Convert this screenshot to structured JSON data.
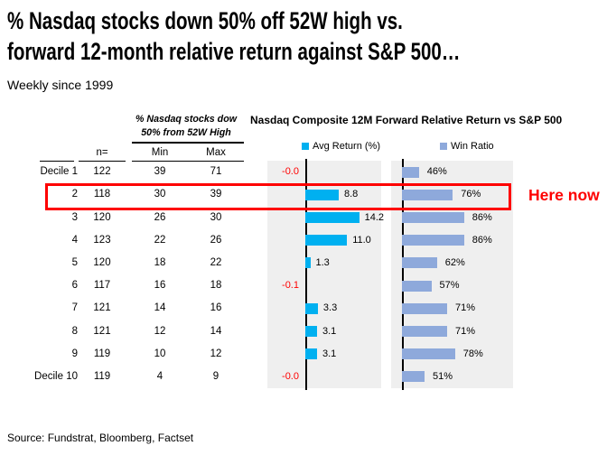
{
  "header": {
    "title_line1": "% Nasdaq stocks down 50% off 52W high vs.",
    "title_line2": "forward 12-month relative return against S&P 500…",
    "subtitle": "Weekly since 1999"
  },
  "table": {
    "span_header_line1": "% Nasdaq stocks dow",
    "span_header_line2": "50% from 52W High",
    "col_n": "n=",
    "col_min": "Min",
    "col_max": "Max",
    "rows": [
      {
        "label": "Decile 1",
        "n": "122",
        "min": "39",
        "max": "71"
      },
      {
        "label": "2",
        "n": "118",
        "min": "30",
        "max": "39"
      },
      {
        "label": "3",
        "n": "120",
        "min": "26",
        "max": "30"
      },
      {
        "label": "4",
        "n": "123",
        "min": "22",
        "max": "26"
      },
      {
        "label": "5",
        "n": "120",
        "min": "18",
        "max": "22"
      },
      {
        "label": "6",
        "n": "117",
        "min": "16",
        "max": "18"
      },
      {
        "label": "7",
        "n": "121",
        "min": "14",
        "max": "16"
      },
      {
        "label": "8",
        "n": "121",
        "min": "12",
        "max": "14"
      },
      {
        "label": "9",
        "n": "119",
        "min": "10",
        "max": "12"
      },
      {
        "label": "Decile 10",
        "n": "119",
        "min": "4",
        "max": "9"
      }
    ]
  },
  "chart": {
    "title": "Nasdaq Composite 12M Forward Relative Return vs S&P 500",
    "legend": [
      {
        "label": "Avg Return (%)",
        "color": "#00b0f0"
      },
      {
        "label": "Win Ratio",
        "color": "#8ea9db"
      }
    ]
  },
  "chart_data": [
    {
      "type": "bar",
      "orientation": "horizontal",
      "name": "Avg Return (%)",
      "categories": [
        "Decile 1",
        "2",
        "3",
        "4",
        "5",
        "6",
        "7",
        "8",
        "9",
        "Decile 10"
      ],
      "values": [
        -0.0,
        8.8,
        14.2,
        11.0,
        1.3,
        -0.1,
        3.3,
        3.1,
        3.1,
        -0.0
      ],
      "labels": [
        "-0.0",
        "8.8",
        "14.2",
        "11.0",
        "1.3",
        "-0.1",
        "3.3",
        "3.1",
        "3.1",
        "-0.0"
      ],
      "xlim": [
        -10,
        20
      ],
      "bar_color": "#00b0f0",
      "negative_label_color": "#ff0000",
      "grid": false,
      "legend_position": "top"
    },
    {
      "type": "bar",
      "orientation": "horizontal",
      "name": "Win Ratio",
      "categories": [
        "Decile 1",
        "2",
        "3",
        "4",
        "5",
        "6",
        "7",
        "8",
        "9",
        "Decile 10"
      ],
      "values": [
        46,
        76,
        86,
        86,
        62,
        57,
        71,
        71,
        78,
        51
      ],
      "labels": [
        "46%",
        "76%",
        "86%",
        "86%",
        "62%",
        "57%",
        "71%",
        "71%",
        "78%",
        "51%"
      ],
      "xlim": [
        31,
        131
      ],
      "bar_color": "#8ea9db",
      "grid": false,
      "legend_position": "top"
    }
  ],
  "annotation": {
    "here_now": "Here now",
    "highlighted_row": "2",
    "highlight_color": "#fe0000"
  },
  "source": "Source: Fundstrat, Bloomberg, Factset"
}
